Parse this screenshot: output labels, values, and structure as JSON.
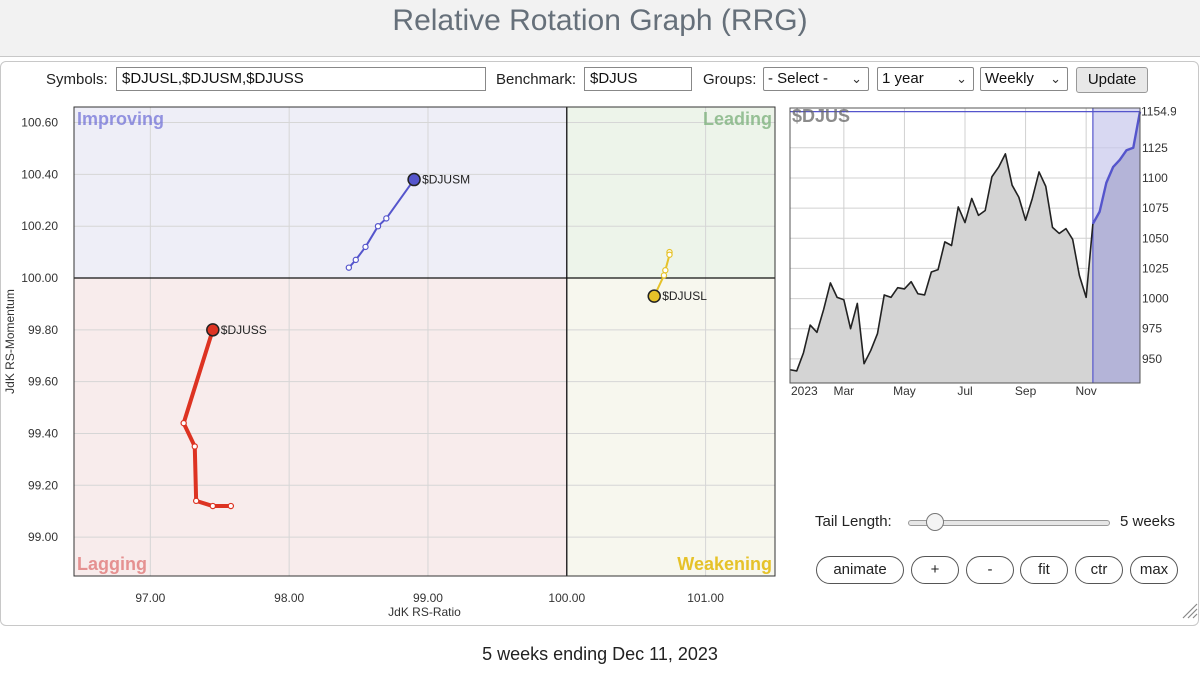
{
  "header": {
    "title": "Relative Rotation Graph (RRG)"
  },
  "toolbar": {
    "symbols_label": "Symbols:",
    "symbols_value": "$DJUSL,$DJUSM,$DJUSS",
    "benchmark_label": "Benchmark:",
    "benchmark_value": "$DJUS",
    "groups_label": "Groups:",
    "groups_value": "- Select -",
    "period_value": "1 year",
    "frequency_value": "Weekly",
    "update_label": "Update"
  },
  "controls": {
    "tail_label": "Tail Length:",
    "tail_value_text": "5 weeks",
    "tail_fraction": 0.1,
    "buttons": [
      "animate",
      "+",
      "-",
      "fit",
      "ctr",
      "max"
    ]
  },
  "footer": {
    "caption": "5 weeks ending Dec 11, 2023"
  },
  "colors": {
    "improving": "#6b6bd6",
    "leading": "#7fb37f",
    "lagging": "#e07a7a",
    "weakening": "#e6c229",
    "djusm": "#5555cc",
    "djusl": "#e6c229",
    "djuss": "#dd3322",
    "price_line": "#222222",
    "price_recent": "#5555cc"
  },
  "chart_data": [
    {
      "type": "scatter",
      "title": "",
      "xlabel": "JdK RS-Ratio",
      "ylabel": "JdK RS-Momentum",
      "xlim": [
        96.45,
        101.5
      ],
      "ylim": [
        98.85,
        100.66
      ],
      "xticks": [
        "97.00",
        "98.00",
        "99.00",
        "100.00",
        "101.00"
      ],
      "yticks": [
        "99.00",
        "99.20",
        "99.40",
        "99.60",
        "99.80",
        "100.00",
        "100.20",
        "100.40",
        "100.60"
      ],
      "quadrants": {
        "top_left": "Improving",
        "top_right": "Leading",
        "bottom_left": "Lagging",
        "bottom_right": "Weakening"
      },
      "center": [
        100,
        100
      ],
      "grid": true,
      "series": [
        {
          "name": "$DJUSM",
          "color_key": "djusm",
          "points": [
            [
              98.43,
              100.04
            ],
            [
              98.48,
              100.07
            ],
            [
              98.55,
              100.12
            ],
            [
              98.64,
              100.2
            ],
            [
              98.7,
              100.23
            ],
            [
              98.9,
              100.38
            ]
          ]
        },
        {
          "name": "$DJUSL",
          "color_key": "djusl",
          "points": [
            [
              100.74,
              100.1
            ],
            [
              100.74,
              100.09
            ],
            [
              100.71,
              100.03
            ],
            [
              100.7,
              100.01
            ],
            [
              100.63,
              99.93
            ]
          ]
        },
        {
          "name": "$DJUSS",
          "color_key": "djuss",
          "points": [
            [
              97.58,
              99.12
            ],
            [
              97.45,
              99.12
            ],
            [
              97.33,
              99.14
            ],
            [
              97.32,
              99.35
            ],
            [
              97.24,
              99.44
            ],
            [
              97.45,
              99.8
            ]
          ]
        }
      ]
    },
    {
      "type": "area",
      "title": "$DJUS",
      "x_labels": [
        "2023",
        "Mar",
        "May",
        "Jul",
        "Sep",
        "Nov"
      ],
      "yticks": [
        "950",
        "975",
        "1000",
        "1025",
        "1050",
        "1075",
        "1100",
        "1125"
      ],
      "ylim": [
        930,
        1158
      ],
      "last_value": "1154.93",
      "highlight_from_index": 45,
      "values": [
        941,
        940,
        955,
        978,
        972,
        991,
        1013,
        1001,
        999,
        975,
        996,
        946,
        957,
        971,
        1003,
        1001,
        1009,
        1008,
        1014,
        1004,
        1003,
        1022,
        1024,
        1047,
        1044,
        1076,
        1063,
        1083,
        1069,
        1073,
        1101,
        1109,
        1120,
        1094,
        1084,
        1065,
        1083,
        1105,
        1093,
        1059,
        1054,
        1058,
        1049,
        1019,
        1001,
        1062,
        1072,
        1096,
        1109,
        1115,
        1123,
        1125,
        1155
      ]
    }
  ]
}
